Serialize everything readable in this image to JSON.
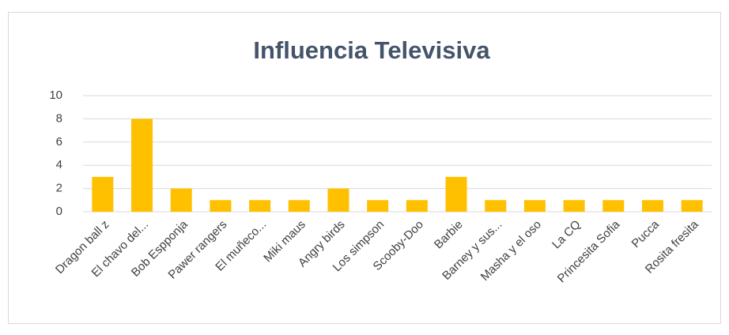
{
  "chart_data": {
    "type": "bar",
    "title": "Influencia Televisiva",
    "categories": [
      "Dragon ball z",
      "El chavo del...",
      "Bob Espponja",
      "Pawer rangers",
      "El muñeco...",
      "Miki maus",
      "Angry birds",
      "Los simpson",
      "Scooby-Doo",
      "Barbie",
      "Barney y sus...",
      "Masha y el oso",
      "La CQ",
      "Princesita Sofia",
      "Pucca",
      "Rosita fresita"
    ],
    "values": [
      3,
      8,
      2,
      1,
      1,
      1,
      2,
      1,
      1,
      3,
      1,
      1,
      1,
      1,
      1,
      1
    ],
    "color": "#ffc000",
    "ylim": [
      0,
      10
    ],
    "yticks": [
      0,
      2,
      4,
      6,
      8,
      10
    ],
    "grid": true
  }
}
